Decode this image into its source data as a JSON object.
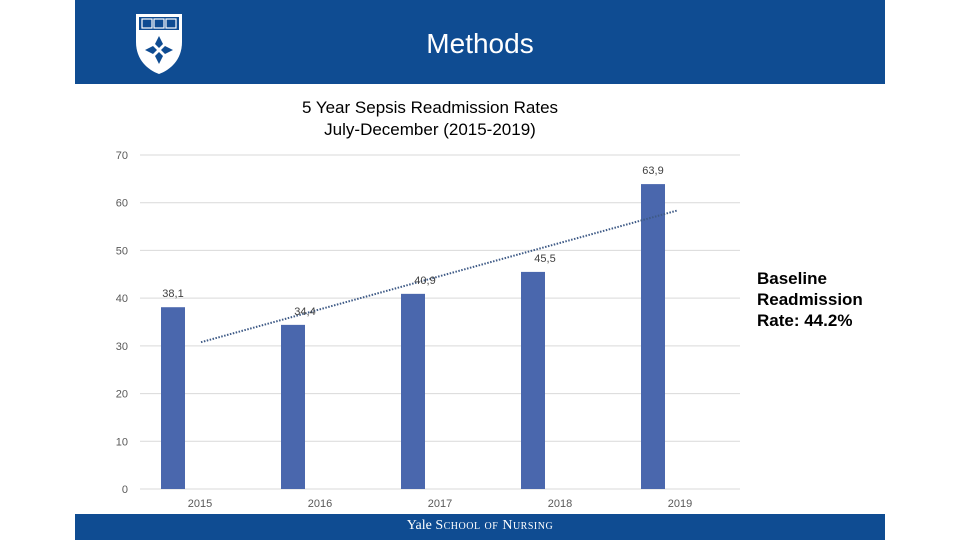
{
  "slide": {
    "title": "Methods",
    "annotation_lines": [
      "Baseline",
      "Readmission",
      "Rate: 44.2%"
    ],
    "footer_brand": "Yale",
    "footer_school": "School of Nursing"
  },
  "colors": {
    "header": "#0f4c92",
    "bar": "#4a67ad",
    "trendline": "#3e5a86",
    "gridline": "#d9d9d9"
  },
  "chart_data": {
    "type": "bar",
    "title_lines": [
      "5 Year Sepsis Readmission Rates",
      "July-December (2015-2019)"
    ],
    "categories": [
      "2015",
      "2016",
      "2017",
      "2018",
      "2019"
    ],
    "values": [
      38.1,
      34.4,
      40.9,
      45.5,
      63.9
    ],
    "value_labels": [
      "38,1",
      "34,4",
      "40,9",
      "45,5",
      "63,9"
    ],
    "ylim": [
      0,
      70
    ],
    "yticks": [
      0,
      10,
      20,
      30,
      40,
      50,
      60,
      70
    ],
    "grid": true,
    "trendline": {
      "type": "linear",
      "style": "dotted"
    },
    "xlabel": "",
    "ylabel": ""
  }
}
